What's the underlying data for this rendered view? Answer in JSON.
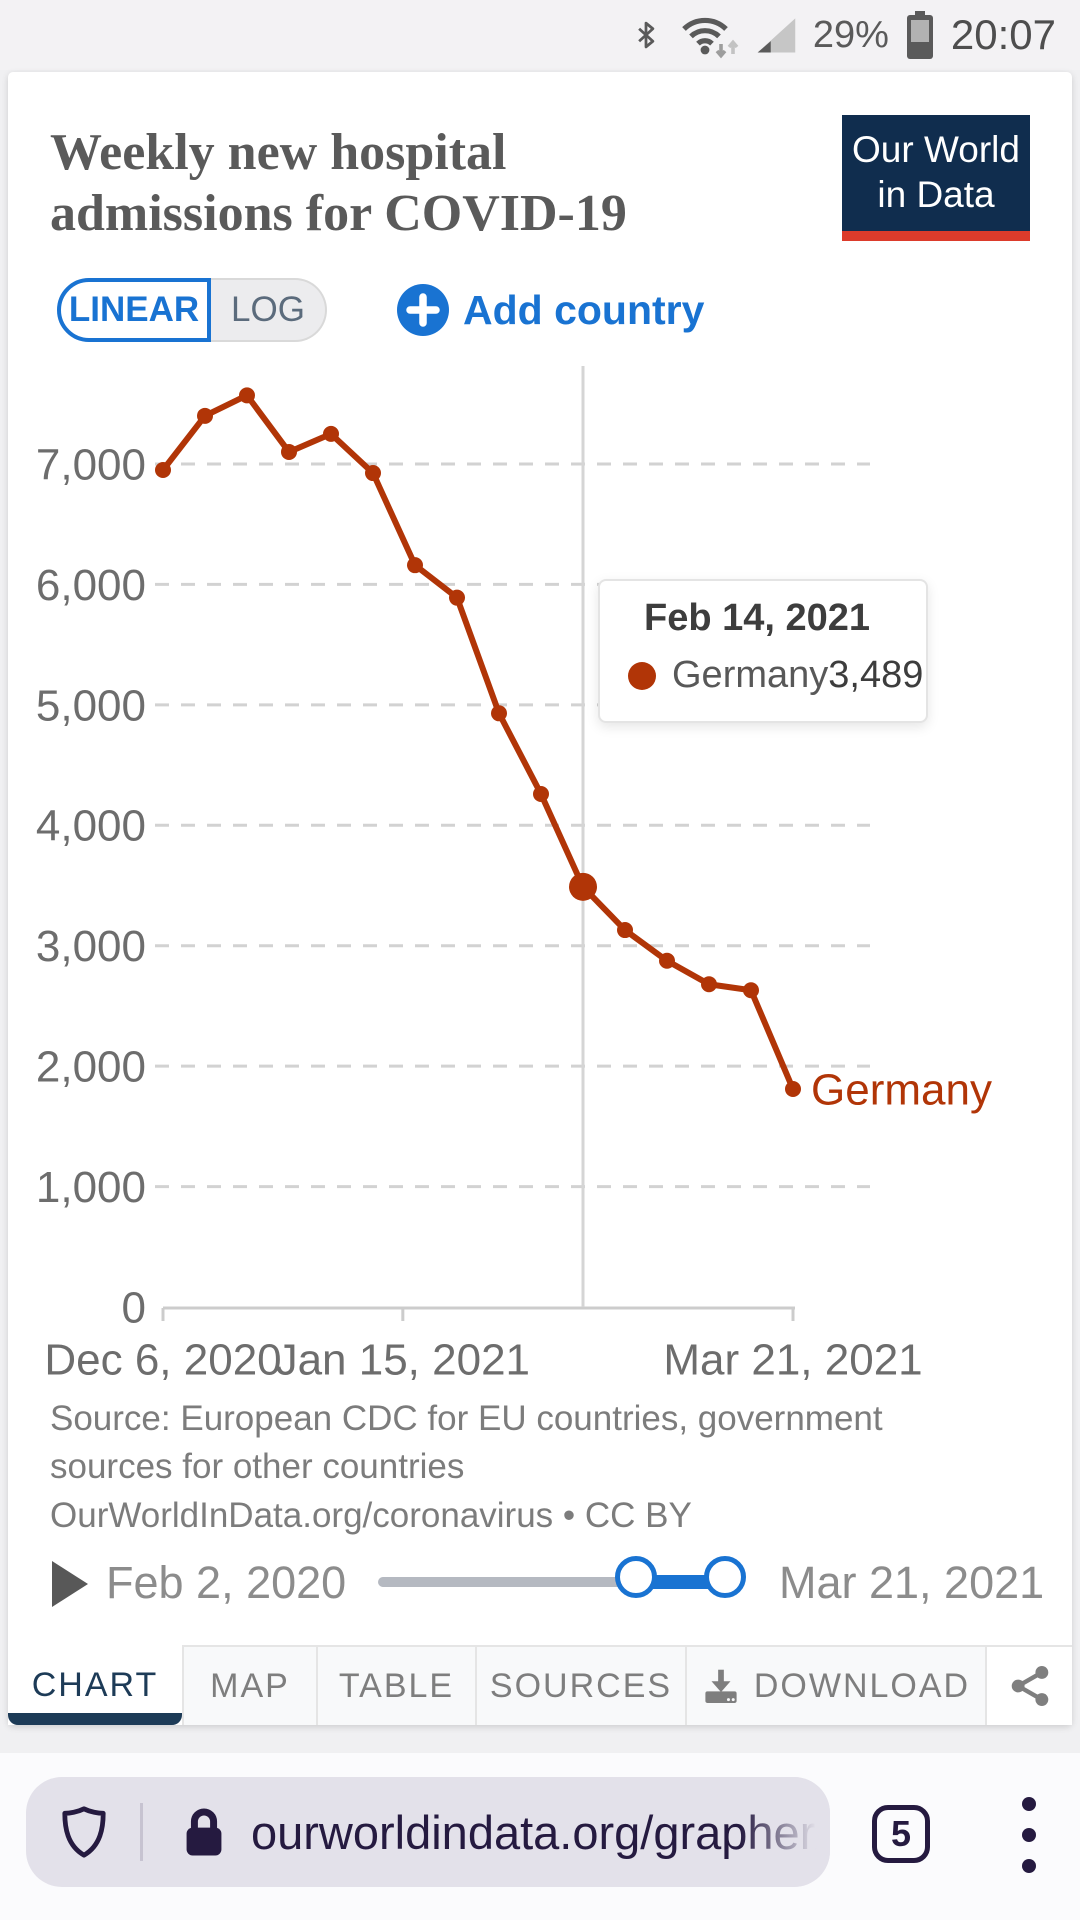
{
  "status_bar": {
    "battery_percent": "29%",
    "time": "20:07"
  },
  "card": {
    "title": "Weekly new hospital admissions for COVID-19",
    "logo": {
      "line1": "Our World",
      "line2": "in Data"
    },
    "controls": {
      "linear": "LINEAR",
      "log": "LOG",
      "add_country": "Add country"
    },
    "chart_data": {
      "type": "line",
      "title": "Weekly new hospital admissions for COVID-19",
      "x": [
        "Dec 6, 2020",
        "Dec 13, 2020",
        "Dec 20, 2020",
        "Dec 27, 2020",
        "Jan 3, 2021",
        "Jan 10, 2021",
        "Jan 17, 2021",
        "Jan 24, 2021",
        "Jan 31, 2021",
        "Feb 7, 2021",
        "Feb 14, 2021",
        "Feb 21, 2021",
        "Feb 28, 2021",
        "Mar 7, 2021",
        "Mar 14, 2021",
        "Mar 21, 2021"
      ],
      "series": [
        {
          "name": "Germany",
          "color": "#b13507",
          "values": [
            6950,
            7400,
            7570,
            7100,
            7250,
            6925,
            6160,
            5890,
            4930,
            4260,
            3489,
            3130,
            2875,
            2680,
            2630,
            1810
          ]
        }
      ],
      "ylim": [
        0,
        7600
      ],
      "yticks": [
        0,
        1000,
        2000,
        3000,
        4000,
        5000,
        6000,
        7000
      ],
      "xticks": [
        {
          "label": "Dec 6, 2020",
          "week_index": 0
        },
        {
          "label": "Jan 15, 2021",
          "week_index": 5.71
        },
        {
          "label": "Mar 21, 2021",
          "week_index": 15
        }
      ],
      "grid": true,
      "legend_position": "end-of-line",
      "end_label": "Germany",
      "highlight_index": 10,
      "scale": "linear"
    },
    "tooltip": {
      "date": "Feb 14, 2021",
      "series_name": "Germany",
      "value": "3,489"
    },
    "source": {
      "line1": "Source: European CDC for EU countries, government sources for other countries",
      "line2": "OurWorldInData.org/coronavirus • CC BY"
    },
    "timeline": {
      "start": "Feb 2, 2020",
      "end": "Mar 21, 2021"
    },
    "tabs": [
      {
        "label": "CHART"
      },
      {
        "label": "MAP"
      },
      {
        "label": "TABLE"
      },
      {
        "label": "SOURCES"
      },
      {
        "label": "DOWNLOAD"
      }
    ]
  },
  "browser": {
    "url": "ourworldindata.org/grapher/",
    "tab_count": "5"
  }
}
